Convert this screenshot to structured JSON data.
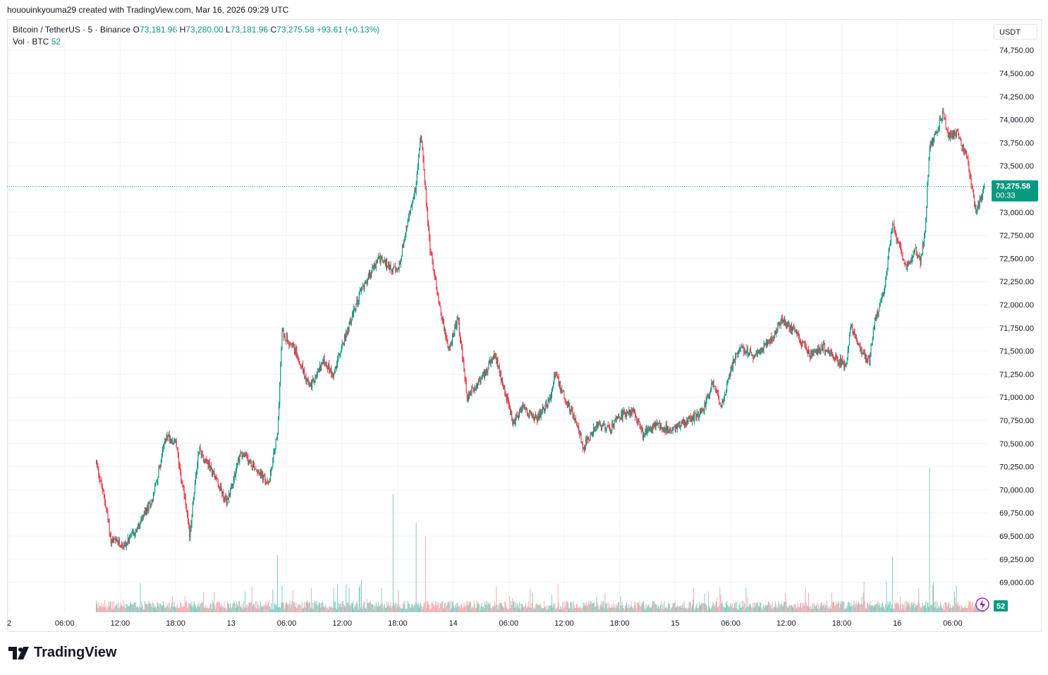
{
  "header": {
    "attribution": "hououinkyouma29 created with TradingView.com, Mar 16, 2026 09:29 UTC"
  },
  "legend": {
    "symbol": "Bitcoin / TetherUS · 5 · Binance",
    "o_label": "O",
    "o_value": "73,181.96",
    "h_label": "H",
    "h_value": "73,280.00",
    "l_label": "L",
    "l_value": "73,181.96",
    "c_label": "C",
    "c_value": "73,275.58",
    "change": "+93.61 (+0.13%)",
    "vol_label": "Vol · BTC",
    "vol_value": "52"
  },
  "currency": "USDT",
  "price_tag": {
    "value": "73,275.58",
    "countdown": "00:33"
  },
  "volume_tag": "52",
  "logo_text": "TradingView",
  "colors": {
    "up": "#089981",
    "down": "#f23645",
    "up_vol": "#7fcdc0",
    "down_vol": "#f7a9b0",
    "grid": "#f0f3fa",
    "text": "#131722"
  },
  "chart_data": {
    "type": "candlestick",
    "symbol": "BTCUSDT",
    "interval_minutes": 5,
    "x_start": "2026-03-12 09:25",
    "x_end": "2026-03-16 09:29",
    "ylim": [
      69050,
      74900
    ],
    "y_ticks": [
      69000,
      69250,
      69500,
      69750,
      70000,
      70250,
      70500,
      70750,
      71000,
      71250,
      71500,
      71750,
      72000,
      72250,
      72500,
      72750,
      73000,
      73250,
      73500,
      73750,
      74000,
      74250,
      74500,
      74750
    ],
    "y_tick_labels": [
      "69,000.00",
      "69,250.00",
      "69,500.00",
      "69,750.00",
      "70,000.00",
      "70,250.00",
      "70,500.00",
      "70,750.00",
      "71,000.00",
      "71,250.00",
      "71,500.00",
      "71,750.00",
      "72,000.00",
      "72,250.00",
      "72,500.00",
      "72,750.00",
      "73,000.00",
      "73,250.00",
      "73,500.00",
      "73,750.00",
      "74,000.00",
      "74,250.00",
      "74,500.00",
      "74,750.00"
    ],
    "x_ticks": [
      "2026-03-12 00:00",
      "2026-03-12 06:00",
      "2026-03-12 12:00",
      "2026-03-12 18:00",
      "2026-03-13 00:00",
      "2026-03-13 06:00",
      "2026-03-13 12:00",
      "2026-03-13 18:00",
      "2026-03-14 00:00",
      "2026-03-14 06:00",
      "2026-03-14 12:00",
      "2026-03-14 18:00",
      "2026-03-15 00:00",
      "2026-03-15 06:00",
      "2026-03-15 12:00",
      "2026-03-15 18:00",
      "2026-03-16 00:00",
      "2026-03-16 06:00"
    ],
    "x_tick_labels": [
      "2",
      "06:00",
      "12:00",
      "18:00",
      "13",
      "06:00",
      "12:00",
      "18:00",
      "14",
      "06:00",
      "12:00",
      "18:00",
      "15",
      "06:00",
      "12:00",
      "18:00",
      "16",
      "06:00"
    ],
    "last_price": 73275.58,
    "price_path": [
      {
        "t": "2026-03-12 09:25",
        "price": 70300
      },
      {
        "t": "2026-03-12 10:30",
        "price": 69800
      },
      {
        "t": "2026-03-12 11:00",
        "price": 69450
      },
      {
        "t": "2026-03-12 12:30",
        "price": 69400
      },
      {
        "t": "2026-03-12 14:00",
        "price": 69600
      },
      {
        "t": "2026-03-12 15:30",
        "price": 69900
      },
      {
        "t": "2026-03-12 17:00",
        "price": 70600
      },
      {
        "t": "2026-03-12 18:00",
        "price": 70500
      },
      {
        "t": "2026-03-12 19:00",
        "price": 69900
      },
      {
        "t": "2026-03-12 19:30",
        "price": 69500
      },
      {
        "t": "2026-03-12 20:30",
        "price": 70450
      },
      {
        "t": "2026-03-12 22:30",
        "price": 70100
      },
      {
        "t": "2026-03-12 23:30",
        "price": 69850
      },
      {
        "t": "2026-03-13 01:00",
        "price": 70400
      },
      {
        "t": "2026-03-13 03:00",
        "price": 70200
      },
      {
        "t": "2026-03-13 04:00",
        "price": 70050
      },
      {
        "t": "2026-03-13 05:00",
        "price": 70600
      },
      {
        "t": "2026-03-13 05:30",
        "price": 71700
      },
      {
        "t": "2026-03-13 07:00",
        "price": 71500
      },
      {
        "t": "2026-03-13 08:30",
        "price": 71100
      },
      {
        "t": "2026-03-13 10:00",
        "price": 71400
      },
      {
        "t": "2026-03-13 11:00",
        "price": 71250
      },
      {
        "t": "2026-03-13 12:30",
        "price": 71700
      },
      {
        "t": "2026-03-13 14:00",
        "price": 72150
      },
      {
        "t": "2026-03-13 16:00",
        "price": 72500
      },
      {
        "t": "2026-03-13 18:00",
        "price": 72350
      },
      {
        "t": "2026-03-13 19:00",
        "price": 72850
      },
      {
        "t": "2026-03-13 20:00",
        "price": 73300
      },
      {
        "t": "2026-03-13 20:30",
        "price": 73850
      },
      {
        "t": "2026-03-13 21:30",
        "price": 72600
      },
      {
        "t": "2026-03-13 22:30",
        "price": 72000
      },
      {
        "t": "2026-03-13 23:30",
        "price": 71500
      },
      {
        "t": "2026-03-14 00:30",
        "price": 71850
      },
      {
        "t": "2026-03-14 01:30",
        "price": 71000
      },
      {
        "t": "2026-03-14 03:00",
        "price": 71200
      },
      {
        "t": "2026-03-14 04:30",
        "price": 71450
      },
      {
        "t": "2026-03-14 05:30",
        "price": 71100
      },
      {
        "t": "2026-03-14 06:30",
        "price": 70700
      },
      {
        "t": "2026-03-14 07:30",
        "price": 70900
      },
      {
        "t": "2026-03-14 09:00",
        "price": 70750
      },
      {
        "t": "2026-03-14 10:30",
        "price": 71000
      },
      {
        "t": "2026-03-14 11:00",
        "price": 71250
      },
      {
        "t": "2026-03-14 12:30",
        "price": 70900
      },
      {
        "t": "2026-03-14 13:30",
        "price": 70700
      },
      {
        "t": "2026-03-14 14:00",
        "price": 70450
      },
      {
        "t": "2026-03-14 15:30",
        "price": 70700
      },
      {
        "t": "2026-03-14 17:00",
        "price": 70650
      },
      {
        "t": "2026-03-14 18:00",
        "price": 70800
      },
      {
        "t": "2026-03-14 19:30",
        "price": 70850
      },
      {
        "t": "2026-03-14 20:30",
        "price": 70600
      },
      {
        "t": "2026-03-14 22:00",
        "price": 70700
      },
      {
        "t": "2026-03-14 23:30",
        "price": 70650
      },
      {
        "t": "2026-03-15 01:30",
        "price": 70750
      },
      {
        "t": "2026-03-15 03:00",
        "price": 70850
      },
      {
        "t": "2026-03-15 04:00",
        "price": 71150
      },
      {
        "t": "2026-03-15 05:00",
        "price": 70900
      },
      {
        "t": "2026-03-15 06:00",
        "price": 71300
      },
      {
        "t": "2026-03-15 07:00",
        "price": 71550
      },
      {
        "t": "2026-03-15 08:30",
        "price": 71450
      },
      {
        "t": "2026-03-15 10:30",
        "price": 71650
      },
      {
        "t": "2026-03-15 11:30",
        "price": 71850
      },
      {
        "t": "2026-03-15 13:00",
        "price": 71700
      },
      {
        "t": "2026-03-15 14:30",
        "price": 71450
      },
      {
        "t": "2026-03-15 16:00",
        "price": 71550
      },
      {
        "t": "2026-03-15 17:30",
        "price": 71400
      },
      {
        "t": "2026-03-15 18:30",
        "price": 71350
      },
      {
        "t": "2026-03-15 19:00",
        "price": 71800
      },
      {
        "t": "2026-03-15 20:00",
        "price": 71500
      },
      {
        "t": "2026-03-15 21:00",
        "price": 71400
      },
      {
        "t": "2026-03-15 21:30",
        "price": 71800
      },
      {
        "t": "2026-03-15 22:30",
        "price": 72100
      },
      {
        "t": "2026-03-15 23:30",
        "price": 72900
      },
      {
        "t": "2026-03-16 00:00",
        "price": 72700
      },
      {
        "t": "2026-03-16 01:00",
        "price": 72400
      },
      {
        "t": "2026-03-16 02:00",
        "price": 72600
      },
      {
        "t": "2026-03-16 02:30",
        "price": 72450
      },
      {
        "t": "2026-03-16 03:00",
        "price": 72800
      },
      {
        "t": "2026-03-16 03:30",
        "price": 73700
      },
      {
        "t": "2026-03-16 04:00",
        "price": 73800
      },
      {
        "t": "2026-03-16 05:00",
        "price": 74100
      },
      {
        "t": "2026-03-16 05:30",
        "price": 73800
      },
      {
        "t": "2026-03-16 06:30",
        "price": 73850
      },
      {
        "t": "2026-03-16 07:30",
        "price": 73600
      },
      {
        "t": "2026-03-16 08:30",
        "price": 73000
      },
      {
        "t": "2026-03-16 09:00",
        "price": 73150
      },
      {
        "t": "2026-03-16 09:29",
        "price": 73275.58
      }
    ],
    "volume_spikes": [
      {
        "t": "2026-03-13 05:00",
        "volume": 300
      },
      {
        "t": "2026-03-13 17:30",
        "volume": 620
      },
      {
        "t": "2026-03-13 20:00",
        "volume": 470
      },
      {
        "t": "2026-03-13 21:00",
        "volume": 400
      },
      {
        "t": "2026-03-16 03:30",
        "volume": 760
      },
      {
        "t": "2026-03-15 23:30",
        "volume": 290
      }
    ]
  }
}
